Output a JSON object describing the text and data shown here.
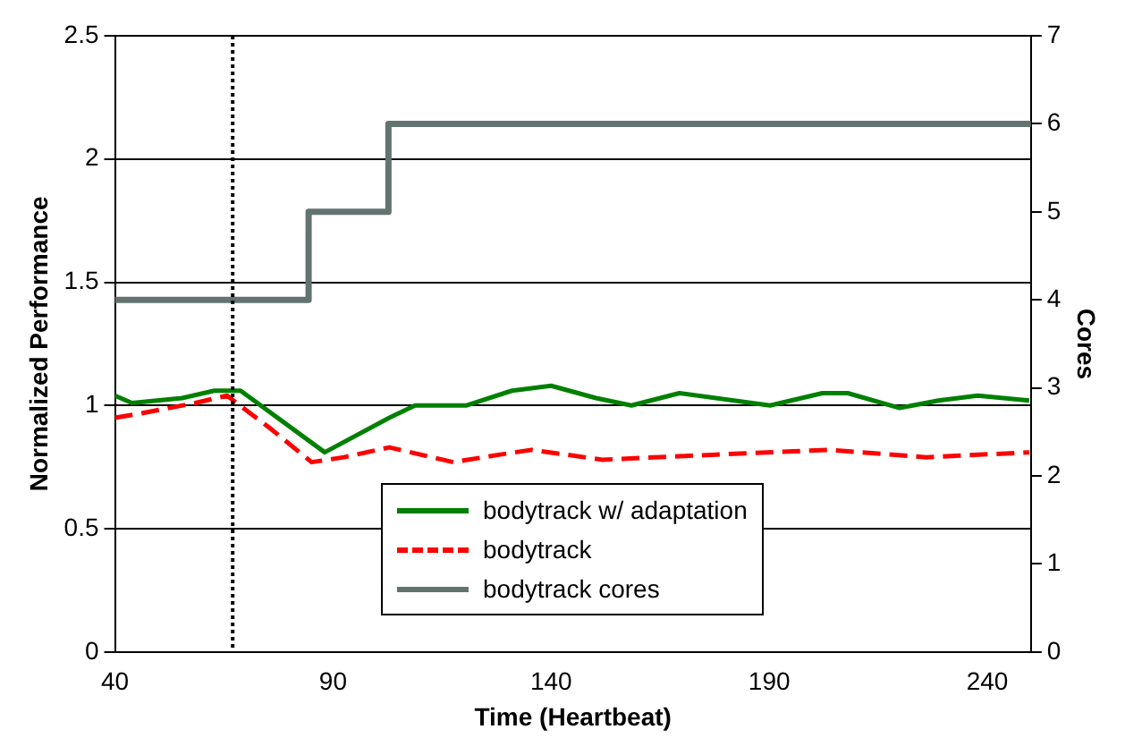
{
  "chart_data": {
    "type": "line",
    "xlabel": "Time (Heartbeat)",
    "ylabel": "Normalized Performance",
    "y2label": "Cores",
    "xlim": [
      40,
      250
    ],
    "xticks": [
      40,
      90,
      140,
      190,
      240
    ],
    "ylim": [
      0,
      2.5
    ],
    "yticks": [
      0,
      0.5,
      1,
      1.5,
      2,
      2.5
    ],
    "y2lim": [
      0,
      7
    ],
    "y2ticks": [
      0,
      1,
      2,
      3,
      4,
      5,
      6,
      7
    ],
    "grid": "y",
    "legend": "bottom",
    "marker": "none",
    "ref_lines": [
      {
        "axis": "x",
        "value": 67,
        "color": "#000000",
        "line_style": "dotted"
      }
    ],
    "series": [
      {
        "name": "bodytrack w/ adaptation",
        "color": "#008000",
        "line_style": "solid",
        "x": [
          40,
          43.9,
          55.4,
          62.8,
          68.8,
          88.1,
          102.9,
          108.8,
          120.5,
          131,
          140,
          150.3,
          158.4,
          169.4,
          190.2,
          202.2,
          208,
          219.9,
          228.8,
          237.8,
          249.6
        ],
        "values": [
          1.04,
          1.01,
          1.03,
          1.06,
          1.06,
          0.81,
          0.95,
          1.0,
          1.0,
          1.06,
          1.08,
          1.03,
          1.0,
          1.05,
          1.0,
          1.05,
          1.05,
          0.99,
          1.02,
          1.04,
          1.02
        ]
      },
      {
        "name": "bodytrack",
        "color": "#ff0000",
        "line_style": "dashed",
        "x": [
          40,
          46.6,
          58.4,
          65.7,
          76.1,
          85.1,
          92.5,
          102.9,
          117.6,
          128,
          135.5,
          151.7,
          177,
          203.7,
          226,
          249.6
        ],
        "values": [
          0.95,
          0.97,
          1.01,
          1.04,
          0.9,
          0.77,
          0.79,
          0.83,
          0.77,
          0.8,
          0.82,
          0.78,
          0.8,
          0.82,
          0.79,
          0.81
        ]
      },
      {
        "name": "bodytrack cores",
        "type": "step",
        "axis": "y2",
        "color": "#637370",
        "line_style": "solid",
        "x": [
          40,
          84.4,
          102.7,
          250
        ],
        "values": [
          4,
          5,
          6,
          6
        ]
      }
    ]
  }
}
